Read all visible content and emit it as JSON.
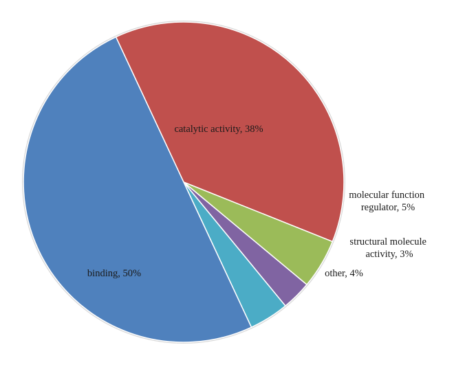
{
  "chart_data": {
    "type": "pie",
    "title": "",
    "start_angle_deg": 115,
    "direction": "clockwise",
    "legend": "none",
    "slices": [
      {
        "name": "catalytic activity",
        "value": 38,
        "label": "catalytic activity, 38%",
        "color": "#c0504d"
      },
      {
        "name": "molecular function regulator",
        "value": 5,
        "label_lines": [
          "molecular function",
          "regulator, 5%"
        ],
        "color": "#9bbb59"
      },
      {
        "name": "structural molecule activity",
        "value": 3,
        "label_lines": [
          "structural molecule",
          "activity, 3%"
        ],
        "color": "#8064a2"
      },
      {
        "name": "other",
        "value": 4,
        "label": "other, 4%",
        "color": "#4bacc6"
      },
      {
        "name": "binding",
        "value": 50,
        "label": "binding, 50%",
        "color": "#4f81bd"
      }
    ]
  }
}
